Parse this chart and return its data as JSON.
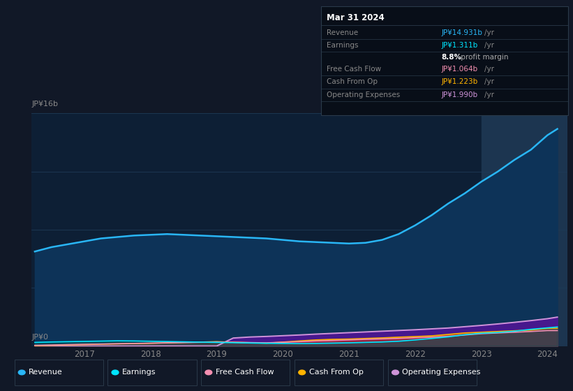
{
  "bg_color": "#111827",
  "plot_bg": "#0d1f35",
  "highlight_bg": "#162840",
  "ylabel_top": "JP¥16b",
  "ylabel_bottom": "JP¥0",
  "x_years": [
    2016.25,
    2016.5,
    2016.75,
    2017.0,
    2017.25,
    2017.5,
    2017.75,
    2018.0,
    2018.25,
    2018.5,
    2018.75,
    2019.0,
    2019.25,
    2019.5,
    2019.75,
    2020.0,
    2020.25,
    2020.5,
    2020.75,
    2021.0,
    2021.25,
    2021.5,
    2021.75,
    2022.0,
    2022.25,
    2022.5,
    2022.75,
    2023.0,
    2023.25,
    2023.5,
    2023.75,
    2024.0,
    2024.15
  ],
  "revenue": [
    6.5,
    6.8,
    7.0,
    7.2,
    7.4,
    7.5,
    7.6,
    7.65,
    7.7,
    7.65,
    7.6,
    7.55,
    7.5,
    7.45,
    7.4,
    7.3,
    7.2,
    7.15,
    7.1,
    7.05,
    7.1,
    7.3,
    7.7,
    8.3,
    9.0,
    9.8,
    10.5,
    11.3,
    12.0,
    12.8,
    13.5,
    14.5,
    14.931
  ],
  "earnings": [
    0.25,
    0.28,
    0.3,
    0.32,
    0.34,
    0.36,
    0.35,
    0.33,
    0.31,
    0.29,
    0.27,
    0.25,
    0.23,
    0.21,
    0.19,
    0.18,
    0.17,
    0.18,
    0.2,
    0.22,
    0.25,
    0.28,
    0.33,
    0.42,
    0.52,
    0.63,
    0.78,
    0.88,
    0.93,
    1.02,
    1.15,
    1.25,
    1.311
  ],
  "free_cash_flow": [
    0.05,
    0.07,
    0.1,
    0.12,
    0.14,
    0.16,
    0.18,
    0.2,
    0.22,
    0.24,
    0.26,
    0.28,
    0.26,
    0.24,
    0.22,
    0.26,
    0.3,
    0.35,
    0.38,
    0.42,
    0.46,
    0.49,
    0.52,
    0.57,
    0.61,
    0.67,
    0.76,
    0.85,
    0.9,
    0.95,
    1.0,
    1.064,
    1.064
  ],
  "cash_from_op": [
    0.03,
    0.05,
    0.08,
    0.1,
    0.13,
    0.15,
    0.17,
    0.19,
    0.22,
    0.25,
    0.27,
    0.3,
    0.26,
    0.23,
    0.2,
    0.27,
    0.35,
    0.42,
    0.46,
    0.48,
    0.52,
    0.56,
    0.61,
    0.65,
    0.7,
    0.8,
    0.9,
    0.95,
    1.0,
    1.05,
    1.1,
    1.223,
    1.223
  ],
  "operating_expenses": [
    0.0,
    0.0,
    0.0,
    0.0,
    0.0,
    0.0,
    0.0,
    0.0,
    0.0,
    0.0,
    0.0,
    0.0,
    0.55,
    0.62,
    0.66,
    0.71,
    0.76,
    0.82,
    0.87,
    0.92,
    0.97,
    1.02,
    1.07,
    1.12,
    1.18,
    1.24,
    1.33,
    1.42,
    1.52,
    1.63,
    1.75,
    1.88,
    1.99
  ],
  "revenue_color": "#29b6f6",
  "earnings_color": "#00e5ff",
  "free_cash_flow_color": "#f48fb1",
  "cash_from_op_color": "#ffb300",
  "operating_expenses_color": "#ce93d8",
  "highlight_start": 2023.0,
  "x_ticks": [
    2017,
    2018,
    2019,
    2020,
    2021,
    2022,
    2023,
    2024
  ],
  "ylim": [
    0,
    16
  ],
  "tooltip": {
    "title": "Mar 31 2024",
    "rows": [
      {
        "label": "Revenue",
        "value": "JP¥14.931b",
        "value_color": "#29b6f6",
        "has_yr": true
      },
      {
        "label": "Earnings",
        "value": "JP¥1.311b",
        "value_color": "#00e5ff",
        "has_yr": true
      },
      {
        "label": "",
        "value": "8.8%",
        "value_color": "#ffffff",
        "has_yr": false,
        "suffix": " profit margin"
      },
      {
        "label": "Free Cash Flow",
        "value": "JP¥1.064b",
        "value_color": "#f48fb1",
        "has_yr": true
      },
      {
        "label": "Cash From Op",
        "value": "JP¥1.223b",
        "value_color": "#ffb300",
        "has_yr": true
      },
      {
        "label": "Operating Expenses",
        "value": "JP¥1.990b",
        "value_color": "#ce93d8",
        "has_yr": true
      }
    ]
  },
  "legend_items": [
    {
      "label": "Revenue",
      "color": "#29b6f6"
    },
    {
      "label": "Earnings",
      "color": "#00e5ff"
    },
    {
      "label": "Free Cash Flow",
      "color": "#f48fb1"
    },
    {
      "label": "Cash From Op",
      "color": "#ffb300"
    },
    {
      "label": "Operating Expenses",
      "color": "#ce93d8"
    }
  ]
}
